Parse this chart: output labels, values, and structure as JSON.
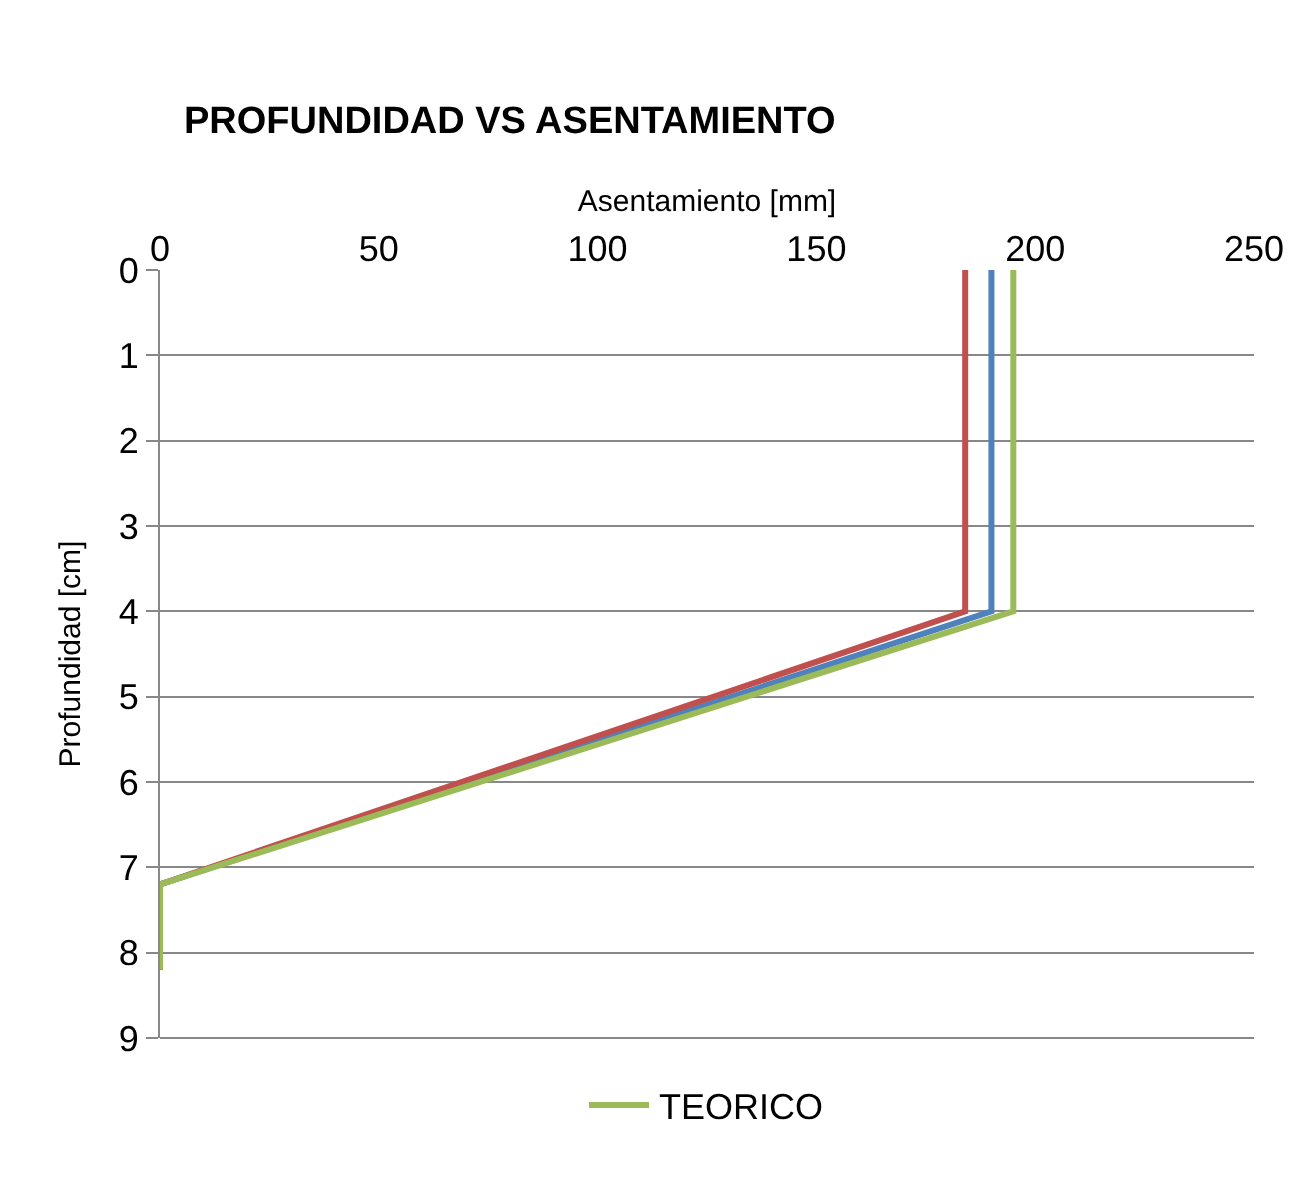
{
  "chart_data": {
    "type": "line",
    "title": "PROFUNDIDAD VS ASENTAMIENTO",
    "xlabel": "Asentamiento [mm]",
    "ylabel": "Profundidad [cm]",
    "xlim": [
      0,
      250
    ],
    "xticks": [
      0,
      50,
      100,
      150,
      200,
      250
    ],
    "ylim": [
      9,
      0
    ],
    "yticks": [
      0,
      1,
      2,
      3,
      4,
      5,
      6,
      7,
      8,
      9
    ],
    "grid": "y",
    "legend": "bottom",
    "marker": "none",
    "line_style": "solid",
    "series": [
      {
        "color": "#4f81bd",
        "x": [
          190,
          190,
          0,
          0
        ],
        "values": [
          0,
          4,
          7.2,
          8.2
        ]
      },
      {
        "color": "#c0504d",
        "x": [
          184,
          184,
          0,
          0
        ],
        "values": [
          0,
          4,
          7.2,
          8.2
        ]
      },
      {
        "name": "TEORICO",
        "color": "#9bbb59",
        "x": [
          195,
          195,
          0,
          0
        ],
        "values": [
          0,
          4,
          7.2,
          8.2
        ]
      }
    ]
  }
}
